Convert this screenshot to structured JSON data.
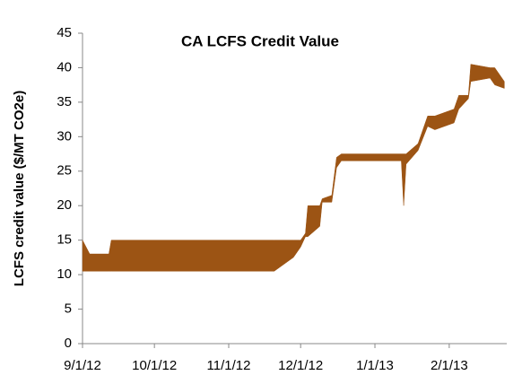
{
  "chart_data": {
    "type": "range-area",
    "title": "CA LCFS Credit Value",
    "y_label": "LCFS credit value ($/MT CO2e)",
    "x": [
      "9/1/12",
      "9/4/12",
      "9/12/12",
      "9/13/12",
      "11/20/12",
      "11/28/12",
      "12/1/12",
      "12/3/12",
      "12/4/12",
      "12/9/12",
      "12/10/12",
      "12/14/12",
      "12/16/12",
      "12/18/12",
      "1/12/13",
      "1/13/13",
      "1/14/13",
      "1/19/13",
      "1/23/13",
      "1/26/13",
      "2/3/13",
      "2/5/13",
      "2/9/13",
      "2/10/13",
      "2/18/13",
      "2/20/13",
      "2/24/13"
    ],
    "series": [
      {
        "color": "#9c5414",
        "values": [
          15,
          13,
          13,
          15,
          15,
          15,
          15,
          16,
          20,
          20,
          21,
          21.5,
          27,
          27.5,
          27.5,
          27.5,
          27.5,
          29,
          33,
          33,
          34,
          36,
          36,
          40.5,
          40,
          40,
          38
        ]
      },
      {
        "color": "#9c5414",
        "values": [
          10.5,
          10.5,
          10.5,
          10.5,
          10.5,
          12.5,
          14,
          15.5,
          15.5,
          17,
          20.5,
          20.5,
          25.5,
          26.5,
          26.5,
          20,
          26,
          28,
          31.5,
          31,
          32,
          34,
          35.5,
          38,
          38.5,
          37.5,
          37
        ]
      }
    ],
    "xlim": [
      "9/1/12",
      "2/25/13"
    ],
    "xticks": [
      "9/1/12",
      "10/1/12",
      "11/1/12",
      "12/1/12",
      "1/1/13",
      "2/1/13"
    ],
    "ylim": [
      0,
      45
    ],
    "yticks": [
      0,
      5,
      10,
      15,
      20,
      25,
      30,
      35,
      40,
      45
    ]
  }
}
